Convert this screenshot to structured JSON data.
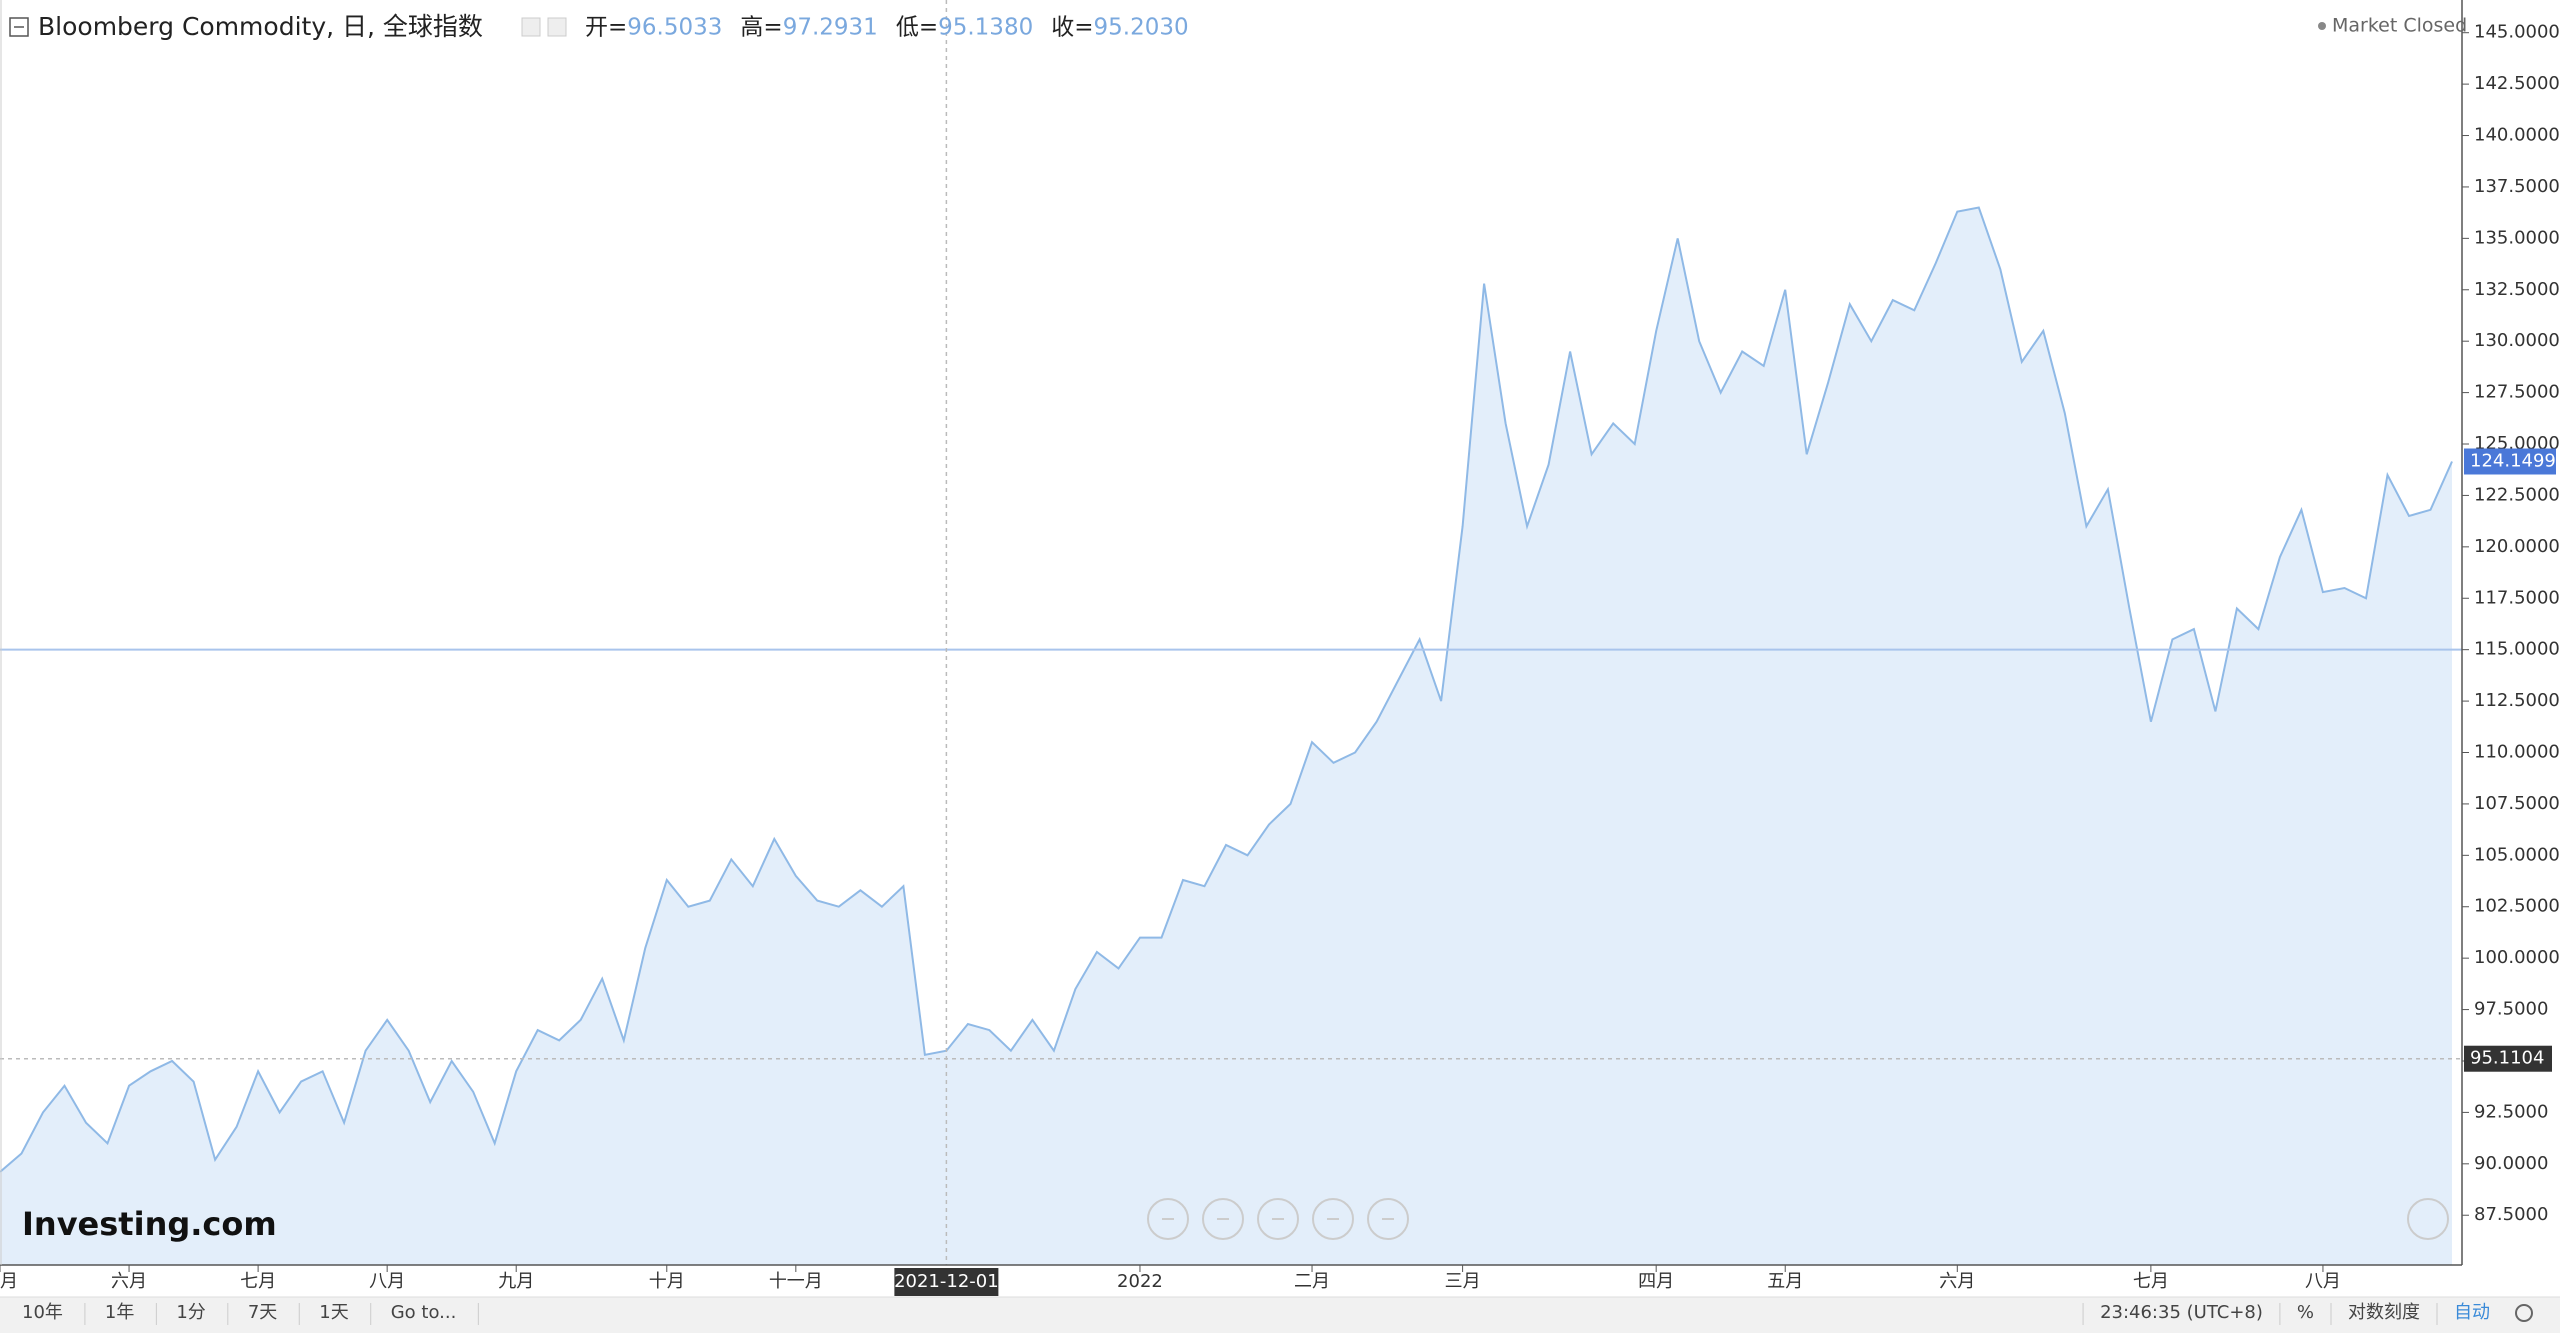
{
  "chart_data": {
    "type": "area",
    "title": "Bloomberg Commodity, 日, 全球指数",
    "ohlc": [
      {
        "label": "开=",
        "value": "96.5033"
      },
      {
        "label": "高=",
        "value": "97.2931"
      },
      {
        "label": "低=",
        "value": "95.1380"
      },
      {
        "label": "收=",
        "value": "95.2030"
      }
    ],
    "market_status": "Market Closed",
    "logo": "Investing.com",
    "color": "#8fb9e6",
    "fill": "#e3eefa",
    "categories": [
      "五月",
      null,
      null,
      null,
      null,
      null,
      "六月",
      null,
      null,
      null,
      null,
      null,
      "七月",
      null,
      null,
      null,
      null,
      null,
      "八月",
      null,
      null,
      null,
      null,
      null,
      "九月",
      null,
      null,
      null,
      null,
      null,
      null,
      "十月",
      null,
      null,
      null,
      null,
      null,
      "十一月",
      null,
      null,
      null,
      null,
      null,
      null,
      "2021-12-01",
      null,
      null,
      null,
      null,
      null,
      null,
      null,
      null,
      "2022",
      null,
      null,
      null,
      null,
      null,
      null,
      null,
      "二月",
      null,
      null,
      null,
      null,
      null,
      null,
      "三月",
      null,
      null,
      null,
      null,
      null,
      null,
      null,
      null,
      "四月",
      null,
      null,
      null,
      null,
      null,
      "五月",
      null,
      null,
      null,
      null,
      null,
      null,
      null,
      "六月",
      null,
      null,
      null,
      null,
      null,
      null,
      null,
      null,
      "七月",
      null,
      null,
      null,
      null,
      null,
      null,
      null,
      "八月",
      null,
      null,
      null,
      null,
      null,
      null
    ],
    "values": [
      89.6,
      90.5,
      92.5,
      93.8,
      92.0,
      91.0,
      93.8,
      94.5,
      95.0,
      94.0,
      90.2,
      91.8,
      94.5,
      92.5,
      94.0,
      94.5,
      92.0,
      95.5,
      97.0,
      95.5,
      93.0,
      95.0,
      93.5,
      91.0,
      94.5,
      96.5,
      96.0,
      97.0,
      99.0,
      96.0,
      100.5,
      103.8,
      102.5,
      102.8,
      104.8,
      103.5,
      105.8,
      104.0,
      102.8,
      102.5,
      103.3,
      102.5,
      103.5,
      95.3,
      95.5,
      96.8,
      96.5,
      95.5,
      97.0,
      95.5,
      98.5,
      100.3,
      99.5,
      101.0,
      101.0,
      103.8,
      103.5,
      105.5,
      105.0,
      106.5,
      107.5,
      110.5,
      109.5,
      110.0,
      111.5,
      113.5,
      115.5,
      112.5,
      121.0,
      132.8,
      126.0,
      121.0,
      124.0,
      129.5,
      124.5,
      126.0,
      125.0,
      130.5,
      135.0,
      130.0,
      127.5,
      129.5,
      128.8,
      132.5,
      124.5,
      128.0,
      131.8,
      130.0,
      132.0,
      131.5,
      133.8,
      136.3,
      136.5,
      133.5,
      129.0,
      130.5,
      126.5,
      121.0,
      122.8,
      117.0,
      111.5,
      115.5,
      116.0,
      112.0,
      117.0,
      116.0,
      119.5,
      121.8,
      117.8,
      118.0,
      117.5,
      123.5,
      121.5,
      121.8,
      124.1499
    ],
    "ylim": [
      85.08,
      146.59
    ],
    "yticks": [
      {
        "value": 87.5,
        "label": "87.5000"
      },
      {
        "value": 90,
        "label": "90.0000"
      },
      {
        "value": 92.5,
        "label": "92.5000"
      },
      {
        "value": 95,
        "label": "95.0000"
      },
      {
        "value": 97.5,
        "label": "97.5000"
      },
      {
        "value": 100,
        "label": "100.0000"
      },
      {
        "value": 102.5,
        "label": "102.5000"
      },
      {
        "value": 105,
        "label": "105.0000"
      },
      {
        "value": 107.5,
        "label": "107.5000"
      },
      {
        "value": 110,
        "label": "110.0000"
      },
      {
        "value": 112.5,
        "label": "112.5000"
      },
      {
        "value": 115,
        "label": "115.0000"
      },
      {
        "value": 117.5,
        "label": "117.5000"
      },
      {
        "value": 120,
        "label": "120.0000"
      },
      {
        "value": 122.5,
        "label": "122.5000"
      },
      {
        "value": 125,
        "label": "125.0000"
      },
      {
        "value": 127.5,
        "label": "127.5000"
      },
      {
        "value": 130,
        "label": "130.0000"
      },
      {
        "value": 132.5,
        "label": "132.5000"
      },
      {
        "value": 135,
        "label": "135.0000"
      },
      {
        "value": 137.5,
        "label": "137.5000"
      },
      {
        "value": 140,
        "label": "140.0000"
      },
      {
        "value": 142.5,
        "label": "142.5000"
      },
      {
        "value": 145,
        "label": "145.0000"
      }
    ],
    "reference_line": 115,
    "crosshair": {
      "x": "2021-12-01",
      "y": 95.1104
    }
  },
  "toolbar": {
    "left": [
      "10年",
      "1年",
      "1分",
      "7天",
      "1天",
      "Go to..."
    ],
    "right": [
      "23:46:35 (UTC+8)",
      "%",
      "对数刻度",
      "自动"
    ]
  }
}
